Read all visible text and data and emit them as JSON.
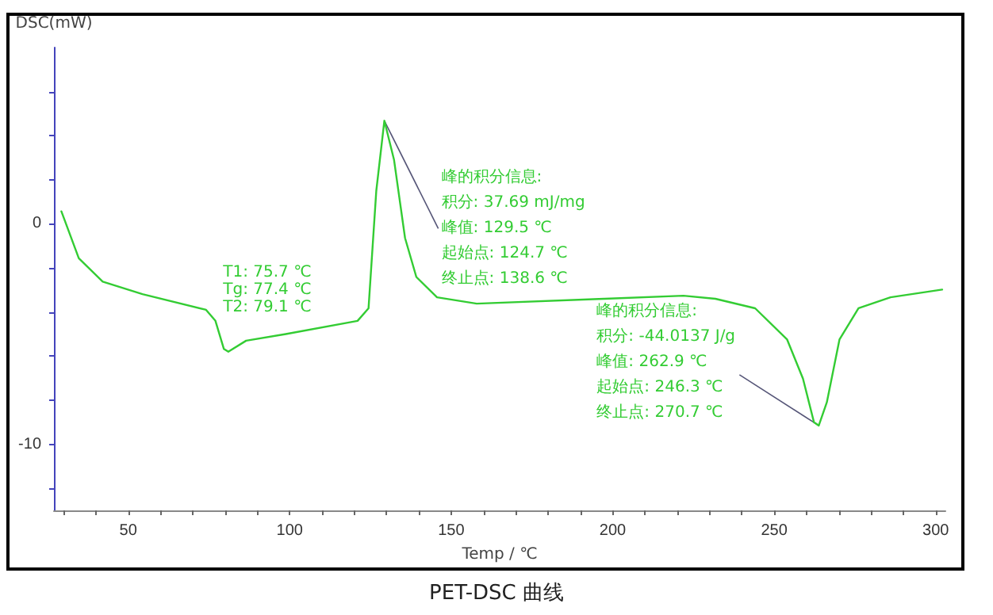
{
  "chart_data": {
    "type": "line",
    "title": "PET-DSC 曲线",
    "xlabel": "Temp / ℃",
    "ylabel": "DSC(mW)",
    "x": [
      29.3,
      34.7,
      42.1,
      54.4,
      74.1,
      77,
      79.6,
      81,
      86.5,
      98.8,
      121,
      124.4,
      126.8,
      129.3,
      132.3,
      135.7,
      139.2,
      145.6,
      157.9,
      197.3,
      221.9,
      231.8,
      244.1,
      254,
      258.9,
      262.3,
      263.8,
      266.3,
      270.2,
      276.1,
      286,
      302
    ],
    "series": [
      {
        "color": "#33cc33",
        "values": [
          0.57,
          -1.56,
          -2.62,
          -3.19,
          -3.9,
          -4.4,
          -5.67,
          -5.8,
          -5.3,
          -5.0,
          -4.4,
          -3.83,
          1.5,
          4.68,
          2.9,
          -0.64,
          -2.41,
          -3.33,
          -3.62,
          -3.4,
          -3.26,
          -3.4,
          -3.83,
          -5.25,
          -7.02,
          -9.0,
          -9.15,
          -8.09,
          -5.25,
          -3.83,
          -3.33,
          -2.98
        ]
      }
    ],
    "xlim": [
      27,
      303
    ],
    "ylim": [
      -13,
      8
    ],
    "xticks": [
      {
        "value": 30,
        "label": null
      },
      {
        "value": 40,
        "label": null
      },
      50,
      {
        "value": 60,
        "label": null
      },
      {
        "value": 70,
        "label": null
      },
      {
        "value": 80,
        "label": null
      },
      {
        "value": 90,
        "label": null
      },
      100,
      {
        "value": 110,
        "label": null
      },
      {
        "value": 120,
        "label": null
      },
      {
        "value": 130,
        "label": null
      },
      {
        "value": 140,
        "label": null
      },
      150,
      {
        "value": 160,
        "label": null
      },
      {
        "value": 170,
        "label": null
      },
      {
        "value": 180,
        "label": null
      },
      {
        "value": 190,
        "label": null
      },
      200,
      {
        "value": 210,
        "label": null
      },
      {
        "value": 220,
        "label": null
      },
      {
        "value": 230,
        "label": null
      },
      {
        "value": 240,
        "label": null
      },
      250,
      {
        "value": 260,
        "label": null
      },
      {
        "value": 270,
        "label": null
      },
      {
        "value": 280,
        "label": null
      },
      {
        "value": 290,
        "label": null
      },
      300
    ],
    "yticks": [
      {
        "value": -12,
        "label": null
      },
      -10,
      {
        "value": -8,
        "label": null
      },
      {
        "value": -6,
        "label": null
      },
      {
        "value": -4,
        "label": null
      },
      {
        "value": -2,
        "label": null
      },
      0,
      {
        "value": 2,
        "label": null
      },
      {
        "value": 4,
        "label": null
      },
      {
        "value": 6,
        "label": null
      }
    ],
    "grid": false,
    "marker": "none",
    "line_style": "solid",
    "annotations": [
      {
        "text": "T1: 75.7 ℃\nTg: 77.4 ℃\nT2: 79.1 ℃",
        "x": 77.4,
        "y": -4.4
      },
      {
        "text": "峰的积分信息:\n积分: 37.69 mJ/mg\n峰值: 129.5 ℃\n起始点: 124.7 ℃\n终止点: 138.6 ℃",
        "x": 129.3,
        "y": 4.68
      },
      {
        "text": "峰的积分信息:\n积分: -44.0137 J/g\n峰值: 262.9 ℃\n起始点: 246.3 ℃\n终止点: 270.7 ℃",
        "x": 263.8,
        "y": -9.15
      }
    ]
  }
}
